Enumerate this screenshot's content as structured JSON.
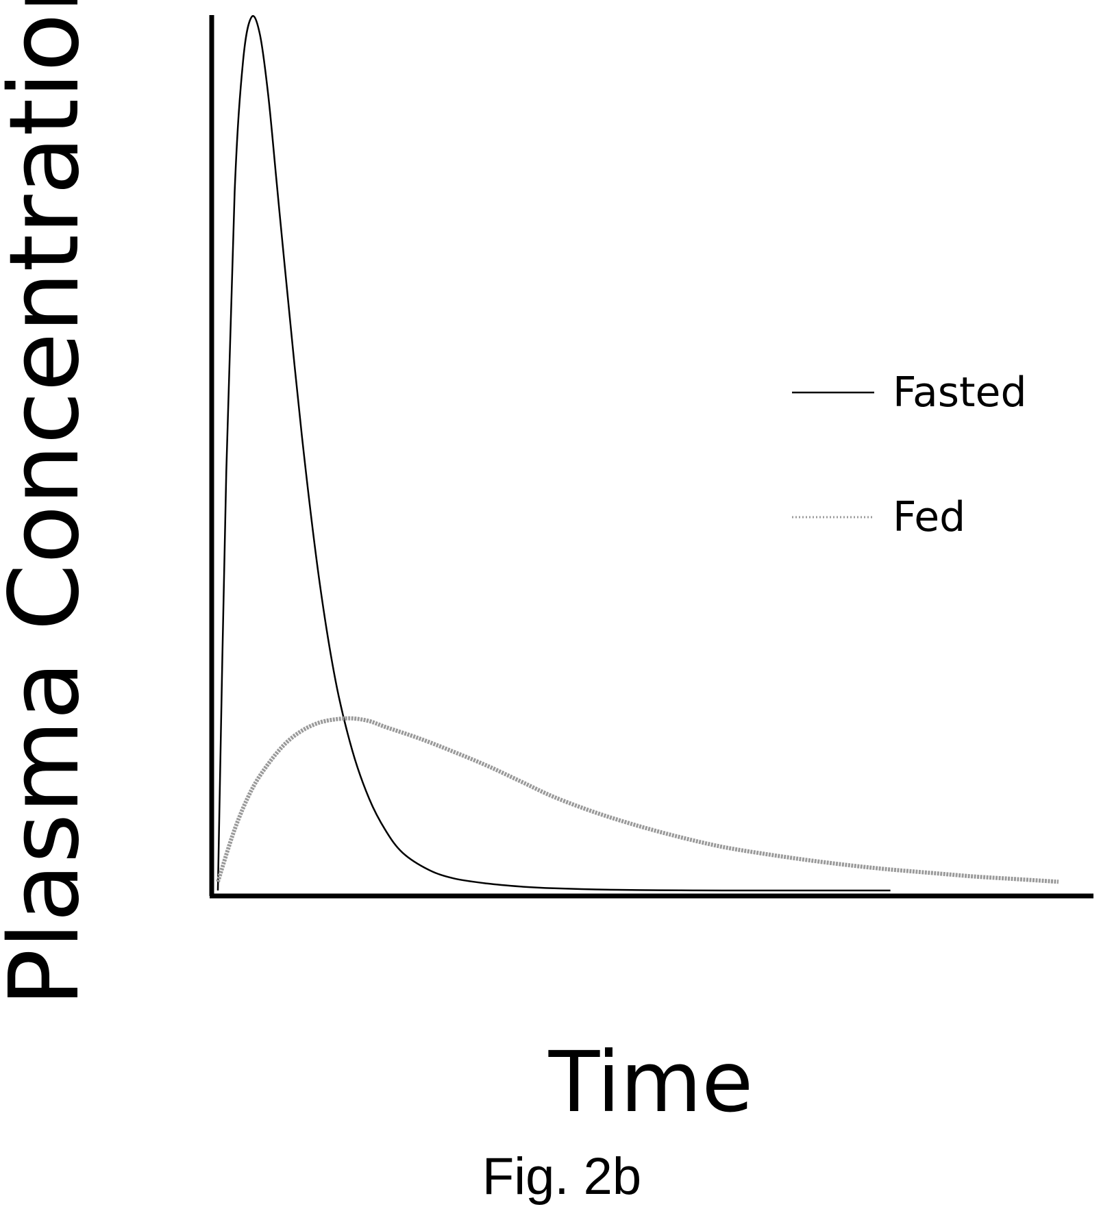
{
  "chart_data": {
    "type": "line",
    "title": "",
    "xlabel": "Time",
    "ylabel": "Plasma Concentration",
    "caption": "Fig. 2b",
    "xlim": [
      0,
      100
    ],
    "ylim": [
      0,
      100
    ],
    "grid": false,
    "legend_position": "right",
    "x_ticks": [],
    "y_ticks": [],
    "series": [
      {
        "name": "Fasted",
        "style": "solid",
        "color": "#000000",
        "x": [
          0,
          1,
          2,
          3,
          4,
          5,
          6,
          7,
          8,
          10,
          12,
          14,
          16,
          18,
          20,
          22,
          25,
          28,
          32,
          36,
          40,
          45,
          50,
          55,
          60,
          70,
          80
        ],
        "y": [
          0,
          48,
          80,
          95,
          100,
          98,
          91,
          81,
          71,
          52,
          36,
          24,
          16,
          10.5,
          6.8,
          4.3,
          2.4,
          1.4,
          0.8,
          0.45,
          0.25,
          0.12,
          0.05,
          0.02,
          0,
          0,
          0
        ]
      },
      {
        "name": "Fed",
        "style": "dotted",
        "color": "#9a9a9a",
        "x": [
          0,
          2,
          4,
          6,
          8,
          10,
          12,
          14,
          16,
          18,
          20,
          24,
          28,
          32,
          36,
          40,
          45,
          50,
          55,
          60,
          65,
          70,
          75,
          80,
          85,
          90,
          95,
          100
        ],
        "y": [
          1,
          7,
          11.5,
          14.5,
          16.8,
          18.3,
          19.2,
          19.6,
          19.7,
          19.4,
          18.7,
          17.4,
          15.9,
          14.3,
          12.5,
          10.7,
          8.9,
          7.4,
          6.1,
          5.0,
          4.2,
          3.5,
          2.9,
          2.4,
          2.0,
          1.6,
          1.3,
          1.0
        ]
      }
    ]
  }
}
